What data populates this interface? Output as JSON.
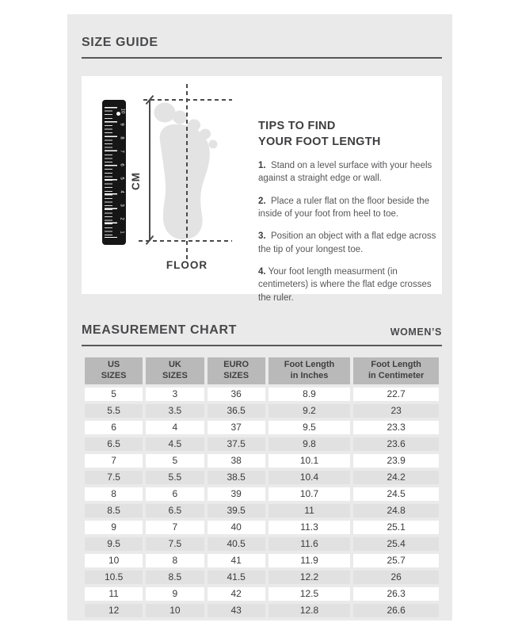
{
  "size_guide": {
    "title": "SIZE GUIDE"
  },
  "diagram": {
    "cm_label": "CM",
    "floor_label": "FLOOR",
    "ruler_numbers": [
      "10",
      "9",
      "8",
      "7",
      "6",
      "5",
      "4",
      "3",
      "2",
      "1"
    ]
  },
  "tips": {
    "title_line1": "TIPS TO FIND",
    "title_line2": "YOUR FOOT LENGTH",
    "items": [
      {
        "num": "1.",
        "text": "Stand on a level surface with your heels against a straight edge or wall."
      },
      {
        "num": "2.",
        "text": "Place a ruler flat on the floor beside the inside of your foot from heel to toe."
      },
      {
        "num": "3.",
        "text": "Position an object with a flat edge across the tip of your longest toe."
      },
      {
        "num": "4.",
        "text": "Your foot length measurment (in centimeters) is where the flat edge crosses the ruler."
      }
    ]
  },
  "measurement_chart": {
    "title": "MEASUREMENT CHART",
    "audience_label": "WOMEN’S"
  },
  "table": {
    "headers": [
      {
        "line1": "US",
        "line2": "SIZES"
      },
      {
        "line1": "UK",
        "line2": "SIZES"
      },
      {
        "line1": "EURO",
        "line2": "SIZES"
      },
      {
        "line1": "Foot Length",
        "line2": "in Inches"
      },
      {
        "line1": "Foot Length",
        "line2": "in Centimeter"
      }
    ],
    "col_width_pct": [
      17,
      17,
      17,
      24,
      25
    ],
    "rows": [
      [
        "5",
        "3",
        "36",
        "8.9",
        "22.7"
      ],
      [
        "5.5",
        "3.5",
        "36.5",
        "9.2",
        "23"
      ],
      [
        "6",
        "4",
        "37",
        "9.5",
        "23.3"
      ],
      [
        "6.5",
        "4.5",
        "37.5",
        "9.8",
        "23.6"
      ],
      [
        "7",
        "5",
        "38",
        "10.1",
        "23.9"
      ],
      [
        "7.5",
        "5.5",
        "38.5",
        "10.4",
        "24.2"
      ],
      [
        "8",
        "6",
        "39",
        "10.7",
        "24.5"
      ],
      [
        "8.5",
        "6.5",
        "39.5",
        "11",
        "24.8"
      ],
      [
        "9",
        "7",
        "40",
        "11.3",
        "25.1"
      ],
      [
        "9.5",
        "7.5",
        "40.5",
        "11.6",
        "25.4"
      ],
      [
        "10",
        "8",
        "41",
        "11.9",
        "25.7"
      ],
      [
        "10.5",
        "8.5",
        "41.5",
        "12.2",
        "26"
      ],
      [
        "11",
        "9",
        "42",
        "12.5",
        "26.3"
      ],
      [
        "12",
        "10",
        "43",
        "12.8",
        "26.6"
      ]
    ]
  },
  "colors": {
    "panel_bg": "#ebeaea",
    "card_bg": "#ffffff",
    "heading_text": "#48494b",
    "rule_line": "#57585a",
    "header_cell_bg": "#b9b9b9",
    "row_alt_bg": "#e2e1e1",
    "cell_text": "#3b3b3b",
    "ruler_black": "#161616",
    "foot_gray": "#e3e3e3",
    "dim_line": "#4a4a4a"
  }
}
